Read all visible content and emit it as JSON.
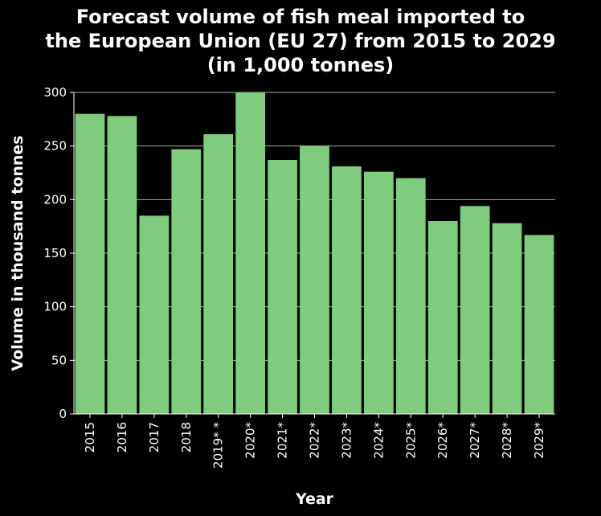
{
  "title_lines": [
    "Forecast volume of fish meal imported to",
    "the European Union (EU 27) from 2015 to 2029",
    "(in 1,000 tonnes)"
  ],
  "colors": {
    "background": "#000000",
    "bar": "#7fcc7f",
    "grid": "#aaaaaa",
    "text": "#ffffff"
  },
  "chart_data": {
    "type": "bar",
    "title": "Forecast volume of fish meal imported to the European Union (EU 27) from 2015 to 2029 (in 1,000 tonnes)",
    "xlabel": "Year",
    "ylabel": "Volume in thousand tonnes",
    "categories": [
      "2015",
      "2016",
      "2017",
      "2018",
      "2019* *",
      "2020*",
      "2021*",
      "2022*",
      "2023*",
      "2024*",
      "2025*",
      "2026*",
      "2027*",
      "2028*",
      "2029*"
    ],
    "values": [
      280,
      278,
      185,
      247,
      261,
      300,
      237,
      250,
      231,
      226,
      220,
      180,
      194,
      178,
      167
    ],
    "ylim": [
      0,
      300
    ],
    "yticks": [
      0,
      50,
      100,
      150,
      200,
      250,
      300
    ],
    "grid": true,
    "legend": "none"
  }
}
